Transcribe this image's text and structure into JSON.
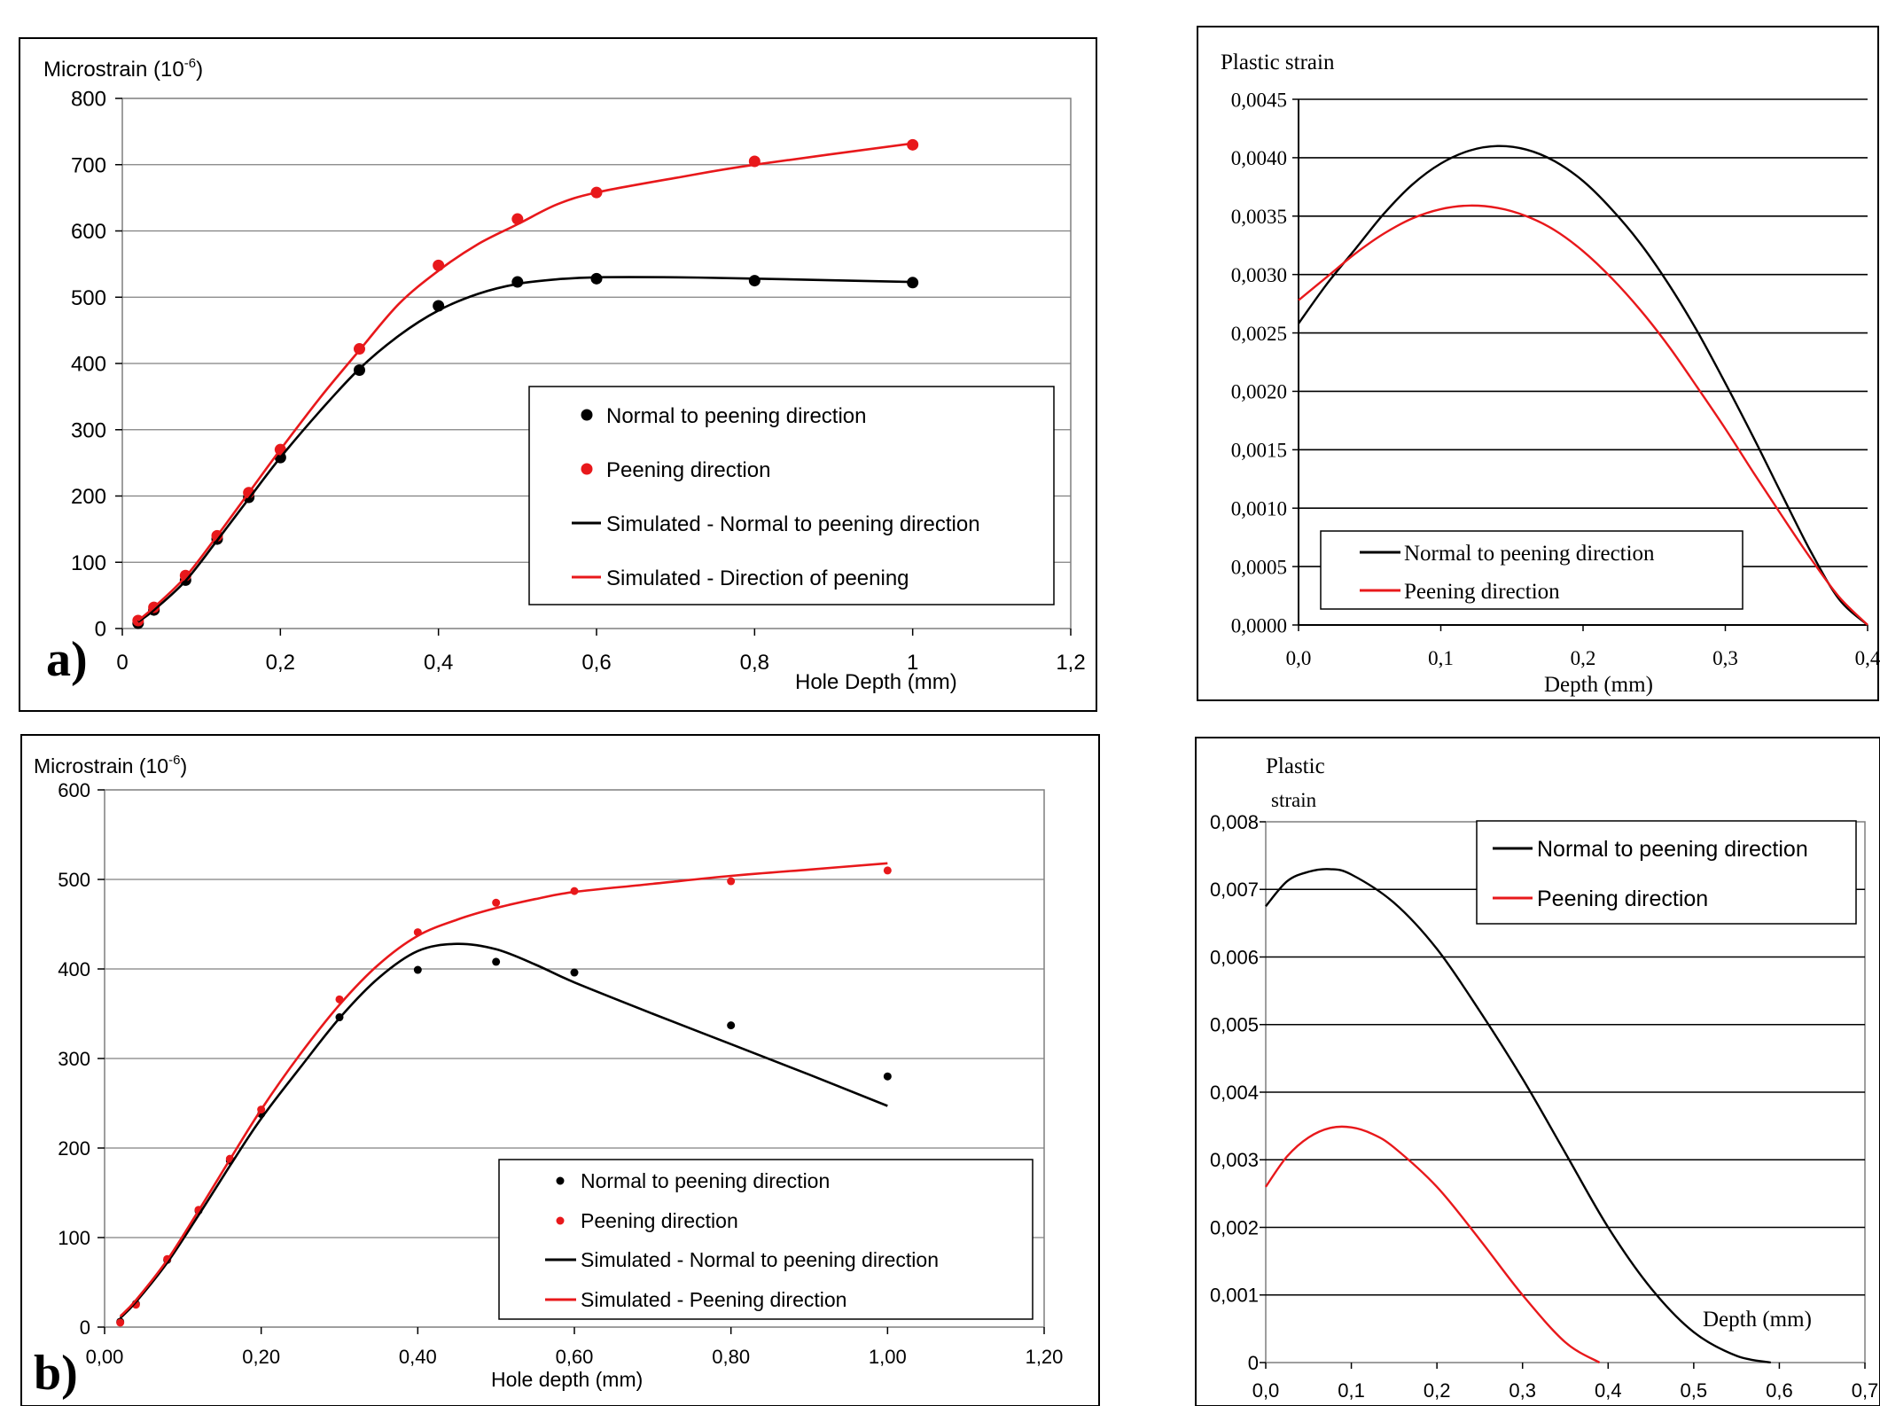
{
  "chart_data": [
    {
      "id": "a",
      "type": "scatter",
      "panel_label": "a)",
      "ylabel": "Microstrain (10",
      "ylabel_sup": "-6",
      "ylabel_close": ")",
      "xlabel": "Hole Depth (mm)",
      "xlim": [
        0,
        1.2
      ],
      "ylim": [
        0,
        800
      ],
      "x_ticks": [
        0,
        0.2,
        0.4,
        0.6,
        0.8,
        1,
        1.2
      ],
      "x_tick_labels": [
        "0",
        "0,2",
        "0,4",
        "0,6",
        "0,8",
        "1",
        "1,2"
      ],
      "y_ticks": [
        0,
        100,
        200,
        300,
        400,
        500,
        600,
        700,
        800
      ],
      "y_tick_labels": [
        "0",
        "100",
        "200",
        "300",
        "400",
        "500",
        "600",
        "700",
        "800"
      ],
      "grid": "horizontal",
      "legend_position": "bottom-right",
      "series": [
        {
          "name": "Normal to peening direction",
          "kind": "points",
          "color": "#000000",
          "x": [
            0.02,
            0.04,
            0.08,
            0.12,
            0.16,
            0.2,
            0.3,
            0.4,
            0.5,
            0.6,
            0.8,
            1.0
          ],
          "y": [
            8,
            28,
            73,
            135,
            198,
            258,
            390,
            487,
            523,
            528,
            525,
            522
          ]
        },
        {
          "name": "Peening direction",
          "kind": "points",
          "color": "#e8181b",
          "x": [
            0.02,
            0.04,
            0.08,
            0.12,
            0.16,
            0.2,
            0.3,
            0.4,
            0.5,
            0.6,
            0.8,
            1.0
          ],
          "y": [
            12,
            32,
            80,
            140,
            205,
            270,
            422,
            548,
            618,
            658,
            705,
            730
          ]
        },
        {
          "name": "Simulated - Normal to peening direction",
          "kind": "line",
          "color": "#000000",
          "x": [
            0.02,
            0.04,
            0.08,
            0.12,
            0.16,
            0.2,
            0.25,
            0.3,
            0.35,
            0.4,
            0.45,
            0.5,
            0.55,
            0.6,
            0.7,
            0.8,
            1.0
          ],
          "y": [
            10,
            28,
            72,
            133,
            196,
            258,
            328,
            392,
            442,
            480,
            505,
            520,
            527,
            530,
            530,
            528,
            523
          ]
        },
        {
          "name": "Simulated - Direction of peening",
          "kind": "line",
          "color": "#e8181b",
          "x": [
            0.02,
            0.04,
            0.08,
            0.12,
            0.16,
            0.2,
            0.25,
            0.3,
            0.35,
            0.4,
            0.45,
            0.5,
            0.55,
            0.6,
            0.7,
            0.8,
            1.0
          ],
          "y": [
            12,
            32,
            78,
            140,
            205,
            270,
            348,
            420,
            490,
            540,
            580,
            610,
            640,
            658,
            680,
            700,
            732
          ]
        }
      ]
    },
    {
      "id": "b",
      "type": "scatter",
      "panel_label": "b)",
      "ylabel": "Microstrain (10",
      "ylabel_sup": "-6",
      "ylabel_close": ")",
      "xlabel": "Hole depth (mm)",
      "xlim": [
        0,
        1.2
      ],
      "ylim": [
        0,
        600
      ],
      "x_ticks": [
        0,
        0.2,
        0.4,
        0.6,
        0.8,
        1.0,
        1.2
      ],
      "x_tick_labels": [
        "0,00",
        "0,20",
        "0,40",
        "0,60",
        "0,80",
        "1,00",
        "1,20"
      ],
      "y_ticks": [
        0,
        100,
        200,
        300,
        400,
        500,
        600
      ],
      "y_tick_labels": [
        "0",
        "100",
        "200",
        "300",
        "400",
        "500",
        "600"
      ],
      "grid": "horizontal",
      "legend_position": "bottom-right",
      "series": [
        {
          "name": "Normal to peening direction",
          "kind": "points",
          "color": "#000000",
          "x": [
            0.02,
            0.04,
            0.08,
            0.12,
            0.16,
            0.2,
            0.3,
            0.4,
            0.5,
            0.6,
            0.8,
            1.0
          ],
          "y": [
            6,
            26,
            75,
            130,
            186,
            238,
            346,
            399,
            408,
            396,
            337,
            280
          ]
        },
        {
          "name": "Peening direction",
          "kind": "points",
          "color": "#e8181b",
          "x": [
            0.02,
            0.04,
            0.08,
            0.12,
            0.16,
            0.2,
            0.3,
            0.4,
            0.5,
            0.6,
            0.8,
            1.0
          ],
          "y": [
            5,
            25,
            76,
            131,
            188,
            243,
            366,
            441,
            474,
            487,
            498,
            510
          ]
        },
        {
          "name": "Simulated - Normal to peening direction",
          "kind": "line",
          "color": "#000000",
          "x": [
            0.02,
            0.04,
            0.08,
            0.12,
            0.16,
            0.2,
            0.25,
            0.3,
            0.35,
            0.4,
            0.45,
            0.5,
            0.55,
            0.6,
            0.7,
            0.8,
            0.9,
            1.0
          ],
          "y": [
            10,
            28,
            72,
            125,
            180,
            233,
            290,
            345,
            390,
            420,
            428,
            422,
            405,
            385,
            350,
            316,
            282,
            247
          ]
        },
        {
          "name": "Simulated - Peening direction",
          "kind": "line",
          "color": "#e8181b",
          "x": [
            0.02,
            0.04,
            0.08,
            0.12,
            0.16,
            0.2,
            0.25,
            0.3,
            0.35,
            0.4,
            0.45,
            0.5,
            0.55,
            0.6,
            0.7,
            0.8,
            0.9,
            1.0
          ],
          "y": [
            12,
            30,
            75,
            130,
            187,
            243,
            305,
            360,
            405,
            437,
            455,
            468,
            478,
            486,
            495,
            504,
            511,
            518
          ]
        }
      ]
    },
    {
      "id": "c",
      "type": "line",
      "ylabel": "Plastic strain",
      "xlabel": "Depth (mm)",
      "xlim": [
        0,
        0.4
      ],
      "ylim": [
        0,
        0.0045
      ],
      "x_ticks": [
        0,
        0.1,
        0.2,
        0.3,
        0.4
      ],
      "x_tick_labels": [
        "0,0",
        "0,1",
        "0,2",
        "0,3",
        "0,4"
      ],
      "y_ticks": [
        0,
        0.0005,
        0.001,
        0.0015,
        0.002,
        0.0025,
        0.003,
        0.0035,
        0.004,
        0.0045
      ],
      "y_tick_labels": [
        "0,0000",
        "0,0005",
        "0,0010",
        "0,0015",
        "0,0020",
        "0,0025",
        "0,0030",
        "0,0035",
        "0,0040",
        "0,0045"
      ],
      "grid": "horizontal",
      "legend_position": "bottom-left",
      "series": [
        {
          "name": "Normal to peening direction",
          "kind": "line",
          "color": "#000000",
          "x": [
            0,
            0.02,
            0.04,
            0.06,
            0.08,
            0.1,
            0.12,
            0.14,
            0.16,
            0.18,
            0.2,
            0.22,
            0.24,
            0.26,
            0.28,
            0.3,
            0.32,
            0.34,
            0.36,
            0.38,
            0.4
          ],
          "y": [
            0.00258,
            0.00292,
            0.00322,
            0.00352,
            0.00377,
            0.00395,
            0.00406,
            0.0041,
            0.00407,
            0.00397,
            0.0038,
            0.00356,
            0.00327,
            0.00292,
            0.00252,
            0.00207,
            0.0016,
            0.00111,
            0.00063,
            0.00022,
            0
          ]
        },
        {
          "name": "Peening direction",
          "kind": "line",
          "color": "#e8181b",
          "x": [
            0,
            0.02,
            0.04,
            0.06,
            0.08,
            0.1,
            0.12,
            0.14,
            0.16,
            0.18,
            0.2,
            0.22,
            0.24,
            0.26,
            0.28,
            0.3,
            0.32,
            0.34,
            0.36,
            0.38,
            0.4
          ],
          "y": [
            0.00278,
            0.00298,
            0.00318,
            0.00335,
            0.00348,
            0.00356,
            0.00359,
            0.00357,
            0.0035,
            0.00338,
            0.0032,
            0.00297,
            0.0027,
            0.00239,
            0.00204,
            0.00168,
            0.0013,
            0.00093,
            0.00057,
            0.00024,
            0
          ]
        }
      ]
    },
    {
      "id": "d",
      "type": "line",
      "ylabel_line1": "Plastic",
      "ylabel_line2": "strain",
      "xlabel": "Depth (mm)",
      "xlim": [
        0,
        0.7
      ],
      "ylim": [
        0,
        0.008
      ],
      "x_ticks": [
        0,
        0.1,
        0.2,
        0.3,
        0.4,
        0.5,
        0.6,
        0.7
      ],
      "x_tick_labels": [
        "0,0",
        "0,1",
        "0,2",
        "0,3",
        "0,4",
        "0,5",
        "0,6",
        "0,7"
      ],
      "y_ticks": [
        0,
        0.001,
        0.002,
        0.003,
        0.004,
        0.005,
        0.006,
        0.007,
        0.008
      ],
      "y_tick_labels": [
        "0",
        "0,001",
        "0,002",
        "0,003",
        "0,004",
        "0,005",
        "0,006",
        "0,007",
        "0,008"
      ],
      "grid": "horizontal",
      "legend_position": "top-right",
      "series": [
        {
          "name": "Normal to peening direction",
          "kind": "line",
          "color": "#000000",
          "x": [
            0,
            0.025,
            0.05,
            0.075,
            0.1,
            0.15,
            0.2,
            0.25,
            0.3,
            0.35,
            0.4,
            0.45,
            0.5,
            0.55,
            0.59
          ],
          "y": [
            0.00675,
            0.00712,
            0.00726,
            0.0073,
            0.00722,
            0.0068,
            0.00612,
            0.0052,
            0.0042,
            0.0031,
            0.002,
            0.0011,
            0.00045,
            0.0001,
            0
          ]
        },
        {
          "name": "Peening direction",
          "kind": "line",
          "color": "#e8181b",
          "x": [
            0,
            0.025,
            0.05,
            0.075,
            0.1,
            0.125,
            0.15,
            0.2,
            0.25,
            0.3,
            0.35,
            0.39
          ],
          "y": [
            0.0026,
            0.00305,
            0.00333,
            0.00347,
            0.00348,
            0.00338,
            0.00318,
            0.0026,
            0.00182,
            0.001,
            0.0003,
            0
          ]
        }
      ]
    }
  ]
}
